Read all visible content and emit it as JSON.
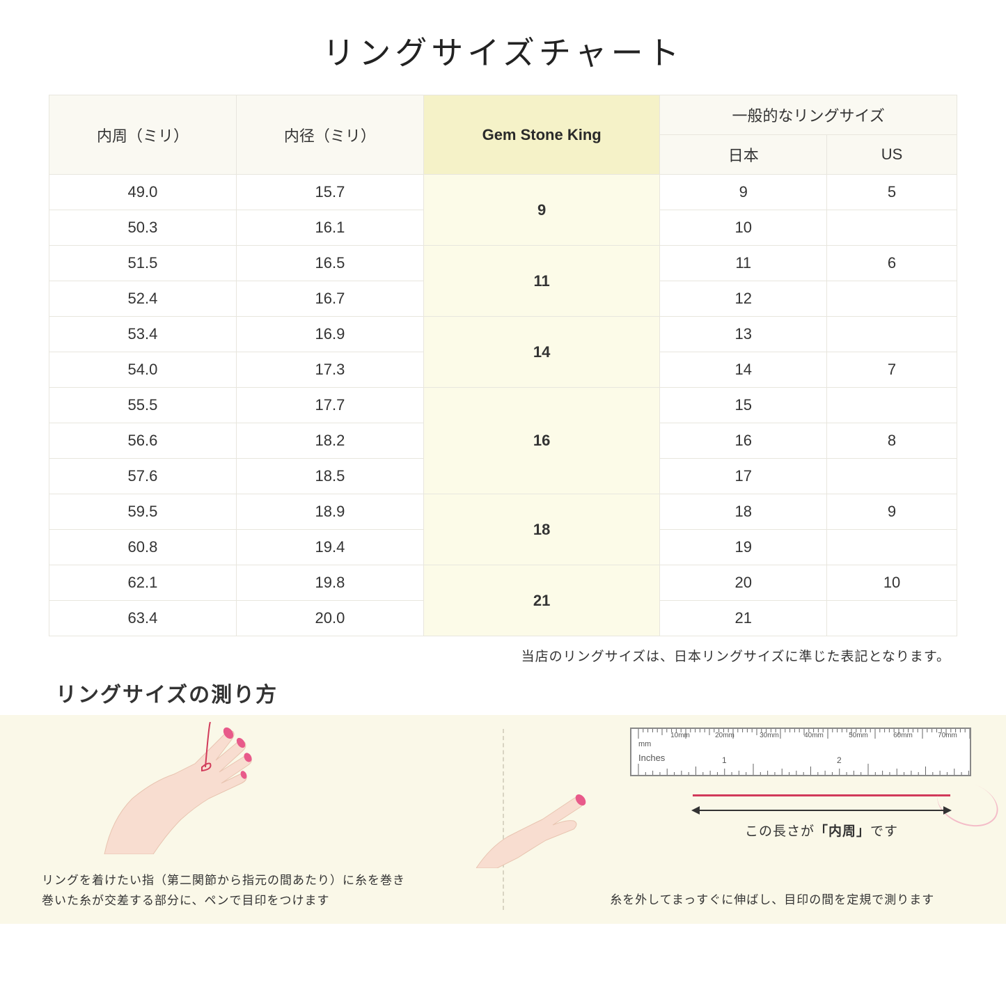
{
  "title": "リングサイズチャート",
  "headers": {
    "col1": "内周（ミリ）",
    "col2": "内径（ミリ）",
    "col3": "Gem Stone King",
    "col4_parent": "一般的なリングサイズ",
    "col4a": "日本",
    "col4b": "US"
  },
  "groups": [
    {
      "gsk": "9",
      "rows": [
        {
          "c": "49.0",
          "d": "15.7",
          "jp": "9",
          "us": "5"
        },
        {
          "c": "50.3",
          "d": "16.1",
          "jp": "10",
          "us": ""
        }
      ]
    },
    {
      "gsk": "11",
      "rows": [
        {
          "c": "51.5",
          "d": "16.5",
          "jp": "11",
          "us": "6"
        },
        {
          "c": "52.4",
          "d": "16.7",
          "jp": "12",
          "us": ""
        }
      ]
    },
    {
      "gsk": "14",
      "rows": [
        {
          "c": "53.4",
          "d": "16.9",
          "jp": "13",
          "us": ""
        },
        {
          "c": "54.0",
          "d": "17.3",
          "jp": "14",
          "us": "7"
        }
      ]
    },
    {
      "gsk": "16",
      "rows": [
        {
          "c": "55.5",
          "d": "17.7",
          "jp": "15",
          "us": ""
        },
        {
          "c": "56.6",
          "d": "18.2",
          "jp": "16",
          "us": "8"
        },
        {
          "c": "57.6",
          "d": "18.5",
          "jp": "17",
          "us": ""
        }
      ]
    },
    {
      "gsk": "18",
      "rows": [
        {
          "c": "59.5",
          "d": "18.9",
          "jp": "18",
          "us": "9"
        },
        {
          "c": "60.8",
          "d": "19.4",
          "jp": "19",
          "us": ""
        }
      ]
    },
    {
      "gsk": "21",
      "rows": [
        {
          "c": "62.1",
          "d": "19.8",
          "jp": "20",
          "us": "10"
        },
        {
          "c": "63.4",
          "d": "20.0",
          "jp": "21",
          "us": ""
        }
      ]
    }
  ],
  "note": "当店のリングサイズは、日本リングサイズに準じた表記となります。",
  "how_title": "リングサイズの測り方",
  "ruler": {
    "mm": "mm",
    "inches": "Inches",
    "mm_labels": [
      "10mm",
      "20mm",
      "30mm",
      "40mm",
      "50mm",
      "60mm",
      "70mm"
    ],
    "inch_labels": [
      "1",
      "2"
    ]
  },
  "arrow_label_pre": "この長さが",
  "arrow_label_bold": "「内周」",
  "arrow_label_post": "です",
  "caption1": "リングを着けたい指（第二関節から指元の間あたり）に糸を巻き\n巻いた糸が交差する部分に、ペンで目印をつけます",
  "caption2": "糸を外してまっすぐに伸ばし、目印の間を定規で測ります",
  "colors": {
    "header_bg": "#faf9f2",
    "highlight_header_bg": "#f5f2c8",
    "highlight_cell_bg": "#fcfbe8",
    "border": "#e8e6de",
    "how_bg": "#faf8e8",
    "skin": "#f8ddd0",
    "nail": "#e85a8a",
    "thread": "#d13a5a"
  }
}
